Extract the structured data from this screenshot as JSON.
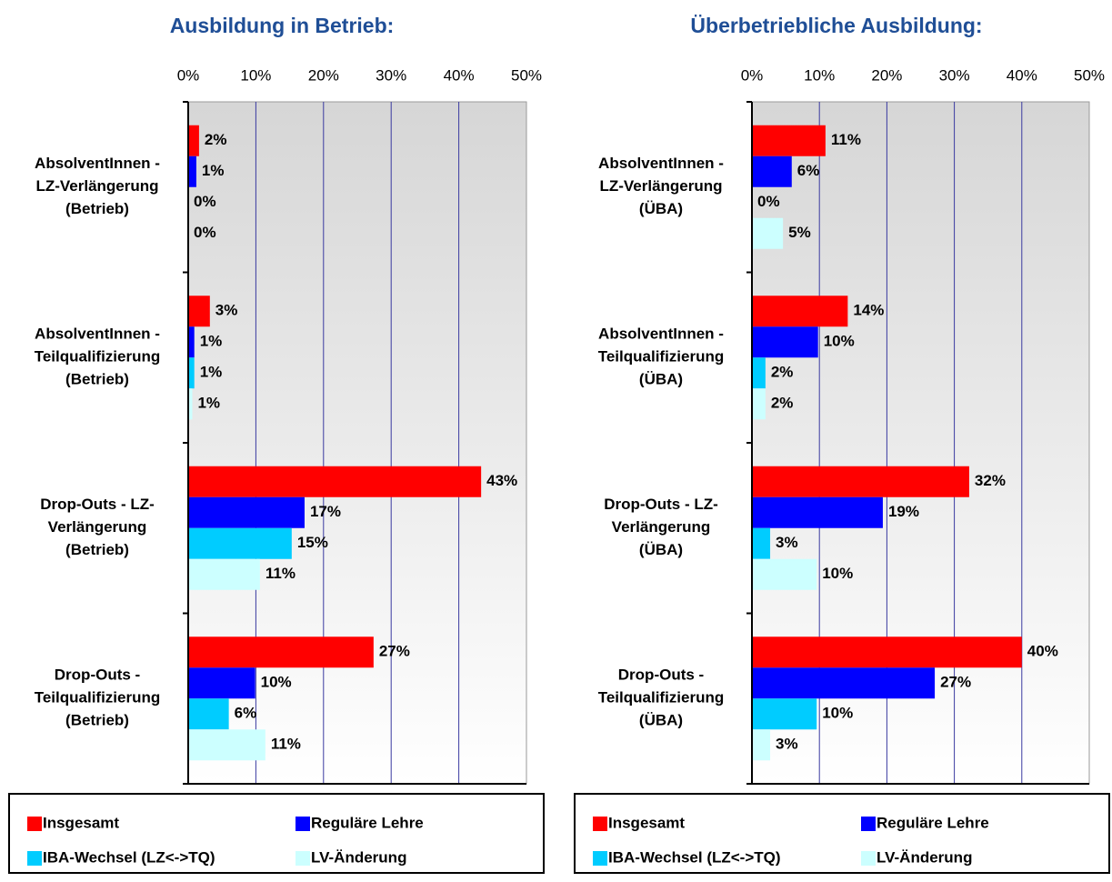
{
  "chart_data": [
    {
      "type": "barh",
      "title": "Ausbildung in Betrieb:",
      "categories": [
        [
          "AbsolventInnen -",
          "LZ-Verlängerung",
          "(Betrieb)"
        ],
        [
          "AbsolventInnen -",
          "Teilqualifizierung",
          "(Betrieb)"
        ],
        [
          "Drop-Outs - LZ-",
          "Verlängerung",
          "(Betrieb)"
        ],
        [
          "Drop-Outs -",
          "Teilqualifizierung",
          "(Betrieb)"
        ]
      ],
      "series": [
        {
          "name": "Insgesamt",
          "color": "#ff0000",
          "values": [
            1.6,
            3.2,
            43.3,
            27.4
          ],
          "value_labels": [
            "2%",
            "3%",
            "43%",
            "27%"
          ]
        },
        {
          "name": "Reguläre Lehre",
          "color": "#0000ff",
          "values": [
            1.2,
            0.9,
            17.2,
            9.9
          ],
          "value_labels": [
            "1%",
            "1%",
            "17%",
            "10%"
          ]
        },
        {
          "name": "IBA-Wechsel (LZ<->TQ)",
          "color": "#00ccff",
          "values": [
            0,
            0.9,
            15.3,
            6.0
          ],
          "value_labels": [
            "0%",
            "1%",
            "15%",
            "6%"
          ]
        },
        {
          "name": "LV-Änderung",
          "color": "#ccffff",
          "values": [
            0,
            0.6,
            10.6,
            11.4
          ],
          "value_labels": [
            "0%",
            "1%",
            "11%",
            "11%"
          ]
        }
      ],
      "xlim": [
        0,
        50
      ],
      "xticks": [
        {
          "value": 0,
          "label": "0%"
        },
        {
          "value": 10,
          "label": "10%"
        },
        {
          "value": 20,
          "label": "20%"
        },
        {
          "value": 30,
          "label": "30%"
        },
        {
          "value": 40,
          "label": "40%"
        },
        {
          "value": 50,
          "label": "50%"
        }
      ],
      "grid": true,
      "legend": "bottom"
    },
    {
      "type": "barh",
      "title": "Überbetriebliche Ausbildung:",
      "categories": [
        [
          "AbsolventInnen -",
          "LZ-Verlängerung",
          "(ÜBA)"
        ],
        [
          "AbsolventInnen -",
          "Teilqualifizierung",
          "(ÜBA)"
        ],
        [
          "Drop-Outs - LZ-",
          "Verlängerung",
          "(ÜBA)"
        ],
        [
          "Drop-Outs -",
          "Teilqualifizierung",
          "(ÜBA)"
        ]
      ],
      "series": [
        {
          "name": "Insgesamt",
          "color": "#ff0000",
          "values": [
            10.9,
            14.2,
            32.2,
            40.0
          ],
          "value_labels": [
            "11%",
            "14%",
            "32%",
            "40%"
          ]
        },
        {
          "name": "Reguläre Lehre",
          "color": "#0000ff",
          "values": [
            5.9,
            9.8,
            19.4,
            27.1
          ],
          "value_labels": [
            "6%",
            "10%",
            "19%",
            "27%"
          ]
        },
        {
          "name": "IBA-Wechsel (LZ<->TQ)",
          "color": "#00ccff",
          "values": [
            0,
            2.0,
            2.7,
            9.6
          ],
          "value_labels": [
            "0%",
            "2%",
            "3%",
            "10%"
          ]
        },
        {
          "name": "LV-Änderung",
          "color": "#ccffff",
          "values": [
            4.6,
            2.0,
            9.6,
            2.7
          ],
          "value_labels": [
            "5%",
            "2%",
            "10%",
            "3%"
          ]
        }
      ],
      "xlim": [
        0,
        50
      ],
      "xticks": [
        {
          "value": 0,
          "label": "0%"
        },
        {
          "value": 10,
          "label": "10%"
        },
        {
          "value": 20,
          "label": "20%"
        },
        {
          "value": 30,
          "label": "30%"
        },
        {
          "value": 40,
          "label": "40%"
        },
        {
          "value": 50,
          "label": "50%"
        }
      ],
      "grid": true,
      "legend": "bottom"
    }
  ]
}
